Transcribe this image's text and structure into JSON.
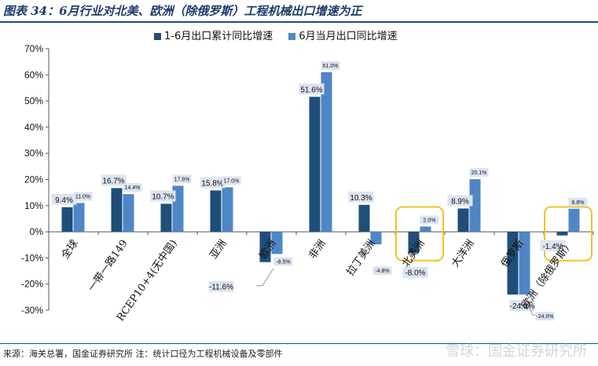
{
  "header": {
    "title": "图表 34：6月行业对北美、欧洲（除俄罗斯）工程机械出口增速为正"
  },
  "footer": {
    "source": "来源：海关总署，国金证券研究所   注：统计口径为工程机械设备及零部件",
    "watermark": "雪球：国金证券研究所"
  },
  "colors": {
    "series1": "#1f4e79",
    "series2": "#4f86c6",
    "label_bg": "#dce4f0",
    "highlight": "#f0c229"
  },
  "chart_data": {
    "type": "bar",
    "title": "6月行业对北美、欧洲（除俄罗斯）工程机械出口增速为正",
    "categories": [
      "全球",
      "一带一路149",
      "RCEP10+4(无中国)",
      "亚洲",
      "欧洲",
      "非洲",
      "拉丁美洲",
      "北美洲",
      "大洋洲",
      "俄罗斯",
      "欧洲（除俄罗斯）"
    ],
    "series": [
      {
        "name": "1-6月出口累计同比增速",
        "values": [
          9.4,
          16.7,
          10.7,
          15.8,
          -11.6,
          51.6,
          10.3,
          -8.0,
          8.9,
          -24.0,
          -1.4
        ]
      },
      {
        "name": "6月当月出口同比增速",
        "values": [
          11.0,
          14.4,
          17.6,
          17.0,
          -8.5,
          61.0,
          -4.8,
          2.0,
          20.1,
          -24.0,
          8.8
        ]
      }
    ],
    "ylim": [
      -30,
      70
    ],
    "yticks": [
      -30,
      -20,
      -10,
      0,
      10,
      20,
      30,
      40,
      50,
      60,
      70
    ],
    "ytick_labels": [
      "-30%",
      "-20%",
      "-10%",
      "0%",
      "10%",
      "20%",
      "30%",
      "40%",
      "50%",
      "60%",
      "70%"
    ],
    "data_labels": [
      [
        "9.4%",
        "16.7%",
        "10.7%",
        "15.8%",
        "-11.6%",
        "51.6%",
        "10.3%",
        "-8.0%",
        "8.9%",
        "-24.0%",
        "-1.4%"
      ],
      [
        "11.0%",
        "14.4%",
        "17.6%",
        "17.0%",
        "-8.5%",
        "61.0%",
        "-4.8%",
        "2.0%",
        "20.1%",
        "-24.0%",
        "8.8%"
      ]
    ],
    "highlighted_categories": [
      "北美洲",
      "欧洲（除俄罗斯）"
    ],
    "legend_position": "top"
  }
}
